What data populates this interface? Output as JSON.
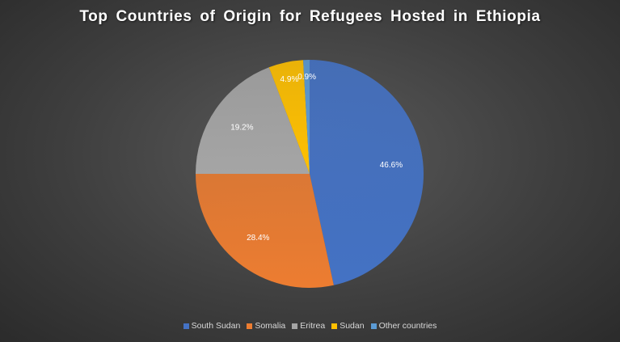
{
  "chart_data": {
    "type": "pie",
    "title": "Top Countries of Origin for Refugees Hosted in Ethiopia",
    "categories": [
      "South Sudan",
      "Somalia",
      "Eritrea",
      "Sudan",
      "Other countries"
    ],
    "values": [
      46.6,
      28.4,
      19.2,
      4.9,
      0.9
    ],
    "data_labels": [
      "46.6%",
      "28.4%",
      "19.2%",
      "4.9%",
      "0.9%"
    ],
    "colors": [
      "#4472C4",
      "#ED7D31",
      "#A5A5A5",
      "#FFC000",
      "#5B9BD5"
    ],
    "legend_position": "bottom"
  }
}
